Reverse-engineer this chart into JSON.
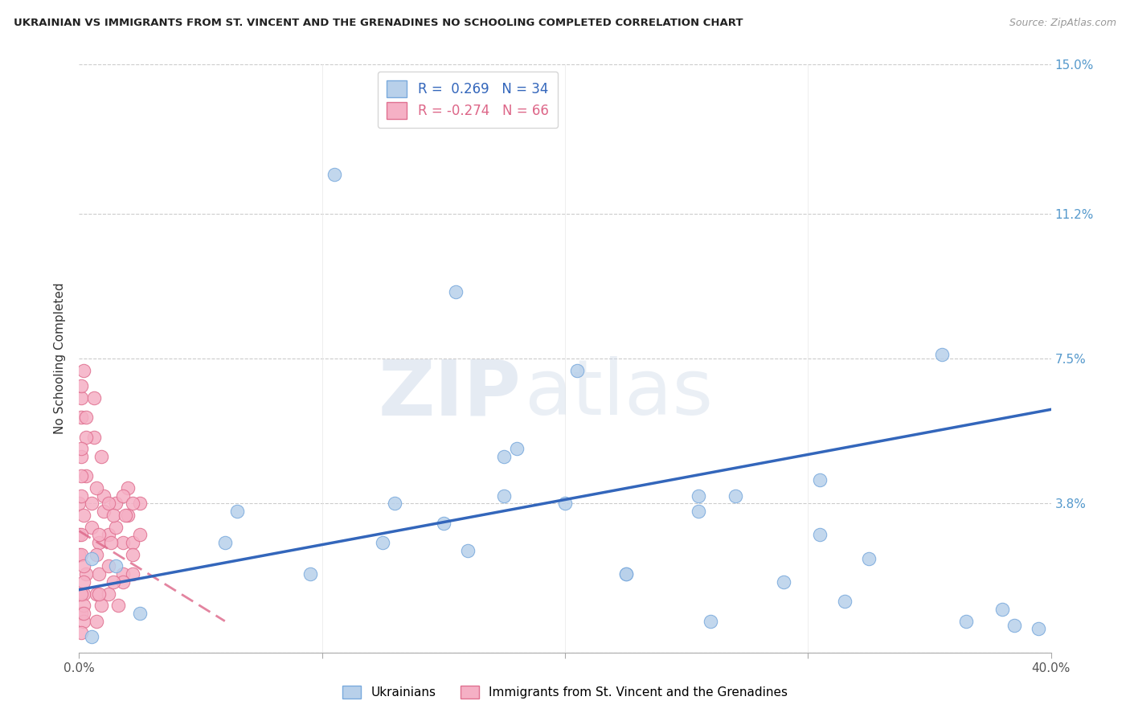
{
  "title": "UKRAINIAN VS IMMIGRANTS FROM ST. VINCENT AND THE GRENADINES NO SCHOOLING COMPLETED CORRELATION CHART",
  "source": "Source: ZipAtlas.com",
  "ylabel": "No Schooling Completed",
  "watermark_zip": "ZIP",
  "watermark_atlas": "atlas",
  "xlim": [
    0.0,
    0.4
  ],
  "ylim": [
    0.0,
    0.15
  ],
  "xticks": [
    0.0,
    0.1,
    0.2,
    0.3,
    0.4
  ],
  "xtick_labels": [
    "0.0%",
    "",
    "",
    "",
    "40.0%"
  ],
  "ytick_vals": [
    0.0,
    0.038,
    0.075,
    0.112,
    0.15
  ],
  "ytick_labels": [
    "",
    "3.8%",
    "7.5%",
    "11.2%",
    "15.0%"
  ],
  "blue_R": "0.269",
  "blue_N": "34",
  "pink_R": "-0.274",
  "pink_N": "66",
  "blue_scatter_color": "#b8d0ea",
  "blue_scatter_edge": "#7aaadd",
  "pink_scatter_color": "#f5b0c5",
  "pink_scatter_edge": "#e07090",
  "blue_line_color": "#3366bb",
  "pink_line_color": "#dd6688",
  "legend_blue_label": "Ukrainians",
  "legend_pink_label": "Immigrants from St. Vincent and the Grenadines",
  "blue_points_x": [
    0.105,
    0.155,
    0.205,
    0.355,
    0.065,
    0.095,
    0.13,
    0.15,
    0.175,
    0.16,
    0.2,
    0.225,
    0.255,
    0.27,
    0.29,
    0.305,
    0.325,
    0.18,
    0.38,
    0.385,
    0.305,
    0.255,
    0.175,
    0.005,
    0.015,
    0.06,
    0.025,
    0.125,
    0.225,
    0.26,
    0.315,
    0.365,
    0.395,
    0.005
  ],
  "blue_points_y": [
    0.122,
    0.092,
    0.072,
    0.076,
    0.036,
    0.02,
    0.038,
    0.033,
    0.04,
    0.026,
    0.038,
    0.02,
    0.04,
    0.04,
    0.018,
    0.03,
    0.024,
    0.052,
    0.011,
    0.007,
    0.044,
    0.036,
    0.05,
    0.024,
    0.022,
    0.028,
    0.01,
    0.028,
    0.02,
    0.008,
    0.013,
    0.008,
    0.006,
    0.004
  ],
  "pink_points_x": [
    0.0,
    0.0,
    0.0,
    0.005,
    0.005,
    0.008,
    0.008,
    0.01,
    0.01,
    0.012,
    0.012,
    0.015,
    0.015,
    0.018,
    0.018,
    0.02,
    0.02,
    0.022,
    0.022,
    0.025,
    0.025,
    0.003,
    0.003,
    0.007,
    0.007,
    0.012,
    0.012,
    0.018,
    0.018,
    0.022,
    0.022,
    0.001,
    0.001,
    0.006,
    0.014,
    0.002,
    0.008,
    0.016,
    0.002,
    0.009,
    0.001,
    0.007,
    0.002,
    0.001,
    0.003,
    0.009,
    0.001,
    0.002,
    0.013,
    0.001,
    0.006,
    0.002,
    0.001,
    0.019,
    0.002,
    0.014,
    0.001,
    0.002,
    0.008,
    0.001,
    0.001,
    0.002,
    0.007,
    0.001,
    0.003,
    0.001
  ],
  "pink_points_y": [
    0.038,
    0.03,
    0.025,
    0.038,
    0.032,
    0.028,
    0.02,
    0.04,
    0.036,
    0.03,
    0.022,
    0.038,
    0.032,
    0.028,
    0.02,
    0.042,
    0.035,
    0.028,
    0.02,
    0.038,
    0.03,
    0.045,
    0.02,
    0.042,
    0.015,
    0.038,
    0.015,
    0.04,
    0.018,
    0.038,
    0.025,
    0.06,
    0.05,
    0.055,
    0.035,
    0.035,
    0.03,
    0.012,
    0.015,
    0.012,
    0.025,
    0.025,
    0.018,
    0.01,
    0.055,
    0.05,
    0.045,
    0.008,
    0.028,
    0.065,
    0.065,
    0.072,
    0.068,
    0.035,
    0.012,
    0.018,
    0.03,
    0.022,
    0.015,
    0.005,
    0.04,
    0.01,
    0.008,
    0.015,
    0.06,
    0.052
  ],
  "blue_line_x0": 0.0,
  "blue_line_y0": 0.016,
  "blue_line_x1": 0.4,
  "blue_line_y1": 0.062,
  "pink_line_x0": 0.0,
  "pink_line_y0": 0.031,
  "pink_line_x1": 0.06,
  "pink_line_y1": 0.008
}
